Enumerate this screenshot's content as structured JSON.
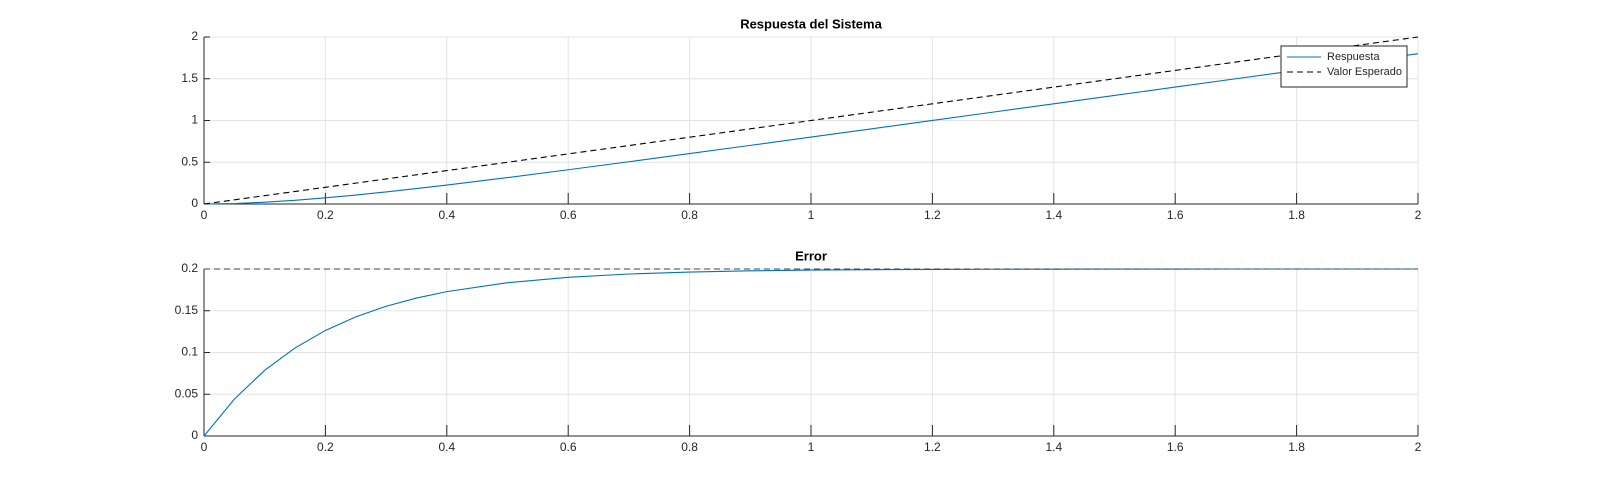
{
  "chart_data": [
    {
      "type": "line",
      "title": "Respuesta del Sistema",
      "x": [
        0,
        0.05,
        0.1,
        0.15,
        0.2,
        0.25,
        0.3,
        0.35,
        0.4,
        0.5,
        0.6,
        0.7,
        0.8,
        0.9,
        1.0,
        1.1,
        1.2,
        1.3,
        1.4,
        1.5,
        1.6,
        1.7,
        1.8,
        1.9,
        2.0
      ],
      "series": [
        {
          "name": "Respuesta",
          "color": "#0072bd",
          "line_style": "solid",
          "values": [
            0,
            0.0058,
            0.0213,
            0.0445,
            0.0736,
            0.1073,
            0.1446,
            0.1848,
            0.2271,
            0.3164,
            0.41,
            0.506,
            0.6037,
            0.7022,
            0.8013,
            0.9008,
            1.0005,
            1.1003,
            1.2002,
            1.3001,
            1.4001,
            1.5,
            1.6,
            1.7,
            1.8
          ]
        },
        {
          "name": "Valor Esperado",
          "color": "#000000",
          "line_style": "dashed",
          "values": [
            0,
            0.05,
            0.1,
            0.15,
            0.2,
            0.25,
            0.3,
            0.35,
            0.4,
            0.5,
            0.6,
            0.7,
            0.8,
            0.9,
            1.0,
            1.1,
            1.2,
            1.3,
            1.4,
            1.5,
            1.6,
            1.7,
            1.8,
            1.9,
            2.0
          ]
        }
      ],
      "xlim": [
        0,
        2
      ],
      "ylim": [
        0,
        2
      ],
      "xticks": [
        0,
        0.2,
        0.4,
        0.6,
        0.8,
        1,
        1.2,
        1.4,
        1.6,
        1.8,
        2
      ],
      "yticks": [
        0,
        0.5,
        1,
        1.5,
        2
      ],
      "grid": true,
      "legend": "northeast"
    },
    {
      "type": "line",
      "title": "Error",
      "x": [
        0,
        0.05,
        0.1,
        0.15,
        0.2,
        0.25,
        0.3,
        0.35,
        0.4,
        0.5,
        0.6,
        0.7,
        0.8,
        0.9,
        1.0,
        1.1,
        1.2,
        1.3,
        1.4,
        1.5,
        1.6,
        1.7,
        1.8,
        1.9,
        2.0
      ],
      "series": [
        {
          "color": "#0072bd",
          "line_style": "solid",
          "values": [
            0,
            0.0442,
            0.0787,
            0.1055,
            0.1264,
            0.1427,
            0.1554,
            0.1652,
            0.1729,
            0.1836,
            0.19,
            0.194,
            0.1963,
            0.1978,
            0.1987,
            0.1992,
            0.1995,
            0.1997,
            0.1998,
            0.1999,
            0.1999,
            0.2,
            0.2,
            0.2,
            0.2
          ]
        },
        {
          "color": "#404040",
          "line_style": "dashed",
          "values": [
            0.2,
            0.2,
            0.2,
            0.2,
            0.2,
            0.2,
            0.2,
            0.2,
            0.2,
            0.2,
            0.2,
            0.2,
            0.2,
            0.2,
            0.2,
            0.2,
            0.2,
            0.2,
            0.2,
            0.2,
            0.2,
            0.2,
            0.2,
            0.2,
            0.2
          ]
        }
      ],
      "xlim": [
        0,
        2
      ],
      "ylim": [
        0,
        0.2
      ],
      "xticks": [
        0,
        0.2,
        0.4,
        0.6,
        0.8,
        1,
        1.2,
        1.4,
        1.6,
        1.8,
        2
      ],
      "yticks": [
        0,
        0.05,
        0.1,
        0.15,
        0.2
      ],
      "grid": true
    }
  ]
}
